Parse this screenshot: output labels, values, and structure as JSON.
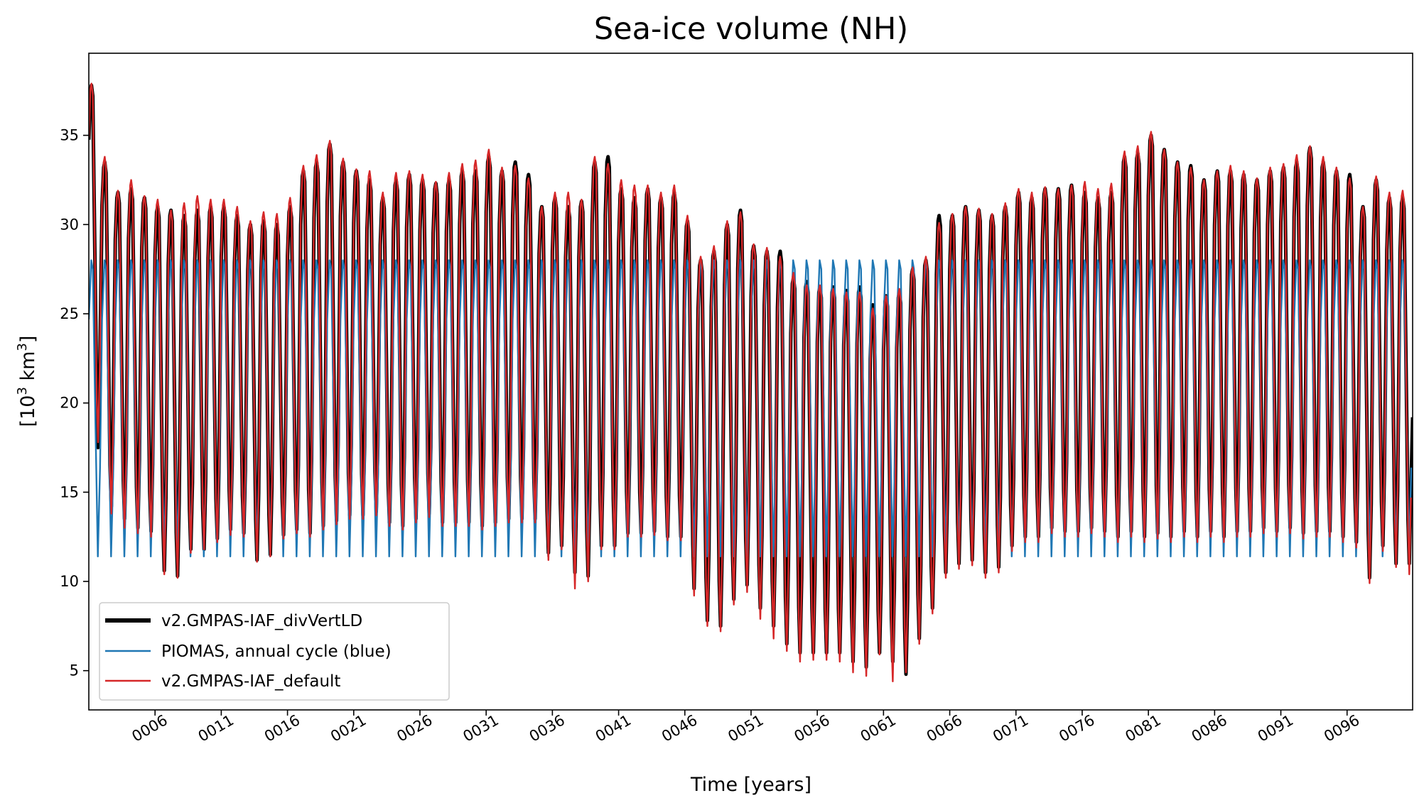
{
  "chart_data": {
    "type": "line",
    "title": "Sea-ice volume (NH)",
    "xlabel": "Time [years]",
    "ylabel_base": "[10",
    "ylabel_exp1": "3",
    "ylabel_mid": " km",
    "ylabel_exp2": "3",
    "ylabel_end": "]",
    "xlim": [
      1.0,
      100.95
    ],
    "ylim": [
      2.8,
      39.6
    ],
    "x_ticks": [
      6,
      11,
      16,
      21,
      26,
      31,
      36,
      41,
      46,
      51,
      56,
      61,
      66,
      71,
      76,
      81,
      86,
      91,
      96
    ],
    "x_tick_labels": [
      "0006",
      "0011",
      "0016",
      "0021",
      "0026",
      "0031",
      "0036",
      "0041",
      "0046",
      "0051",
      "0056",
      "0061",
      "0066",
      "0071",
      "0076",
      "0081",
      "0086",
      "0091",
      "0096"
    ],
    "y_ticks": [
      5,
      10,
      15,
      20,
      25,
      30,
      35
    ],
    "y_tick_labels": [
      "5",
      "10",
      "15",
      "20",
      "25",
      "30",
      "35"
    ],
    "legend_position": "lower-left",
    "series": [
      {
        "name": "v2.GMPAS-IAF_divVertLD",
        "color": "#000000",
        "style": "thick",
        "x_years": [
          1,
          2,
          3,
          4,
          5,
          6,
          7,
          8,
          9,
          10,
          11,
          12,
          13,
          14,
          15,
          16,
          17,
          18,
          19,
          20,
          21,
          22,
          23,
          24,
          25,
          26,
          27,
          28,
          29,
          30,
          31,
          32,
          33,
          34,
          35,
          36,
          37,
          38,
          39,
          40,
          41,
          42,
          43,
          44,
          45,
          46,
          47,
          48,
          49,
          50,
          51,
          52,
          53,
          54,
          55,
          56,
          57,
          58,
          59,
          60,
          61,
          62,
          63,
          64,
          65,
          66,
          67,
          68,
          69,
          70,
          71,
          72,
          73,
          74,
          75,
          76,
          77,
          78,
          79,
          80,
          81,
          82,
          83,
          84,
          85,
          86,
          87,
          88,
          89,
          90,
          91,
          92,
          93,
          94,
          95,
          96,
          97,
          98,
          99,
          100
        ],
        "annual_max": [
          37.8,
          33.5,
          31.8,
          32.0,
          31.5,
          31.0,
          30.8,
          30.5,
          30.8,
          31.0,
          31.0,
          30.5,
          30.0,
          30.2,
          30.0,
          31.0,
          33.0,
          33.5,
          34.5,
          33.5,
          33.0,
          32.5,
          31.5,
          32.5,
          32.8,
          32.5,
          32.3,
          32.5,
          33.0,
          33.0,
          33.8,
          33.0,
          33.5,
          32.8,
          31.0,
          31.5,
          31.0,
          31.3,
          33.5,
          33.8,
          32.0,
          31.5,
          32.0,
          31.5,
          31.8,
          30.2,
          28.0,
          28.5,
          30.0,
          30.8,
          28.8,
          28.5,
          28.5,
          27.0,
          26.8,
          26.5,
          26.5,
          26.3,
          26.5,
          25.5,
          26.0,
          26.2,
          27.5,
          28.0,
          30.5,
          30.5,
          31.0,
          30.8,
          30.5,
          31.0,
          31.8,
          31.5,
          32.0,
          32.0,
          32.2,
          31.8,
          31.5,
          31.8,
          33.8,
          34.0,
          35.0,
          34.2,
          33.5,
          33.3,
          32.5,
          33.0,
          33.0,
          32.8,
          32.5,
          33.0,
          33.2,
          33.5,
          34.3,
          33.5,
          33.0,
          32.8,
          31.0,
          32.5,
          31.5,
          31.5
        ],
        "annual_min": [
          17.5,
          14.2,
          13.5,
          13.0,
          12.8,
          10.6,
          10.3,
          11.8,
          11.8,
          12.4,
          12.9,
          12.7,
          11.2,
          11.5,
          12.6,
          12.9,
          12.7,
          13.1,
          13.4,
          13.7,
          13.7,
          13.9,
          13.3,
          13.1,
          13.5,
          13.8,
          13.3,
          13.3,
          13.3,
          13.1,
          13.3,
          13.5,
          13.5,
          13.5,
          11.6,
          12.0,
          10.5,
          10.3,
          12.0,
          12.0,
          12.7,
          12.7,
          12.8,
          12.5,
          12.5,
          9.6,
          7.8,
          7.5,
          9.0,
          9.8,
          8.5,
          7.5,
          6.5,
          6.0,
          6.0,
          6.0,
          6.0,
          5.5,
          5.2,
          6.0,
          5.5,
          4.8,
          6.8,
          8.5,
          10.5,
          11.0,
          11.2,
          10.5,
          10.8,
          12.0,
          12.5,
          12.5,
          13.0,
          12.8,
          12.8,
          13.0,
          12.8,
          12.5,
          12.8,
          12.5,
          12.7,
          12.5,
          12.8,
          12.5,
          12.8,
          12.5,
          12.8,
          12.8,
          13.0,
          12.8,
          13.0,
          12.7,
          12.8,
          12.8,
          12.5,
          12.2,
          10.2,
          12.0,
          11.0,
          11.0
        ],
        "final_value": 19.2
      },
      {
        "name": "PIOMAS, annual cycle (blue)",
        "color": "#1f77b4",
        "style": "thin",
        "annual_max_value": 28.0,
        "annual_min_value": 11.4
      },
      {
        "name": "v2.GMPAS-IAF_default",
        "color": "#d62728",
        "style": "thin",
        "annual_max": [
          37.9,
          33.8,
          31.9,
          32.5,
          31.6,
          31.4,
          30.8,
          31.2,
          31.6,
          31.4,
          31.4,
          31.0,
          30.2,
          30.7,
          30.6,
          31.5,
          33.3,
          33.9,
          34.7,
          33.7,
          33.1,
          33.0,
          31.8,
          32.9,
          33.0,
          32.8,
          32.4,
          32.9,
          33.4,
          33.6,
          34.2,
          33.2,
          33.3,
          32.6,
          31.0,
          31.8,
          31.8,
          31.4,
          33.8,
          33.4,
          32.5,
          32.2,
          32.2,
          31.8,
          32.2,
          30.5,
          28.2,
          28.8,
          30.2,
          30.7,
          28.9,
          28.7,
          28.2,
          27.3,
          26.6,
          26.6,
          26.4,
          26.2,
          26.2,
          25.3,
          26.0,
          26.4,
          27.6,
          28.2,
          30.1,
          30.6,
          31.0,
          30.9,
          30.6,
          31.2,
          32.0,
          31.8,
          32.1,
          32.0,
          32.2,
          32.4,
          32.0,
          32.3,
          34.1,
          34.4,
          35.2,
          34.2,
          33.5,
          33.2,
          32.5,
          33.0,
          33.3,
          33.0,
          32.6,
          33.2,
          33.4,
          33.9,
          34.4,
          33.8,
          33.2,
          32.6,
          31.0,
          32.7,
          31.8,
          31.9
        ],
        "annual_min": [
          17.8,
          13.8,
          13.0,
          12.7,
          12.5,
          10.4,
          10.2,
          11.6,
          11.8,
          12.2,
          12.6,
          12.5,
          11.1,
          11.4,
          12.4,
          12.7,
          12.5,
          12.9,
          13.2,
          13.5,
          13.5,
          13.7,
          13.1,
          12.9,
          13.3,
          13.6,
          13.1,
          13.1,
          13.1,
          12.9,
          13.1,
          13.3,
          13.3,
          13.3,
          11.2,
          11.8,
          9.6,
          10.0,
          11.8,
          11.8,
          12.5,
          12.5,
          12.6,
          12.3,
          12.3,
          9.2,
          7.5,
          7.2,
          8.7,
          9.4,
          7.9,
          6.8,
          6.1,
          5.5,
          5.6,
          5.6,
          5.5,
          4.9,
          4.7,
          5.9,
          4.4,
          4.9,
          6.5,
          8.2,
          10.2,
          10.7,
          10.9,
          10.2,
          10.5,
          11.7,
          12.2,
          12.2,
          12.7,
          12.5,
          12.5,
          12.7,
          12.5,
          12.2,
          12.5,
          12.2,
          12.4,
          12.2,
          12.5,
          12.2,
          12.5,
          12.2,
          12.5,
          12.5,
          12.7,
          12.5,
          12.7,
          12.4,
          12.5,
          12.5,
          12.2,
          11.9,
          9.9,
          11.7,
          10.8,
          10.4
        ]
      }
    ]
  }
}
